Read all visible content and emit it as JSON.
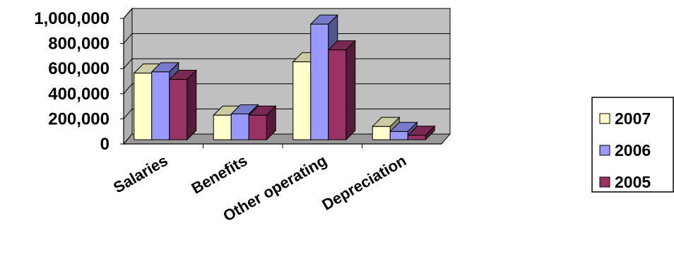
{
  "chart_data": {
    "type": "bar",
    "style": "3d-clustered-column",
    "categories": [
      "Salaries",
      "Benefits",
      "Other operating",
      "Depreciation"
    ],
    "series": [
      {
        "name": "2007",
        "values": [
          530000,
          195000,
          620000,
          105000
        ],
        "color": "#FFFFCC"
      },
      {
        "name": "2006",
        "values": [
          540000,
          205000,
          920000,
          65000
        ],
        "color": "#9999FF"
      },
      {
        "name": "2005",
        "values": [
          480000,
          195000,
          715000,
          35000
        ],
        "color": "#993366"
      }
    ],
    "ylim": [
      0,
      1000000
    ],
    "yticks": [
      "0",
      "200,000",
      "400,000",
      "600,000",
      "800,000",
      "1,000,000"
    ],
    "grid": true,
    "plot_background": "#C0C0C0",
    "legend_position": "right"
  }
}
